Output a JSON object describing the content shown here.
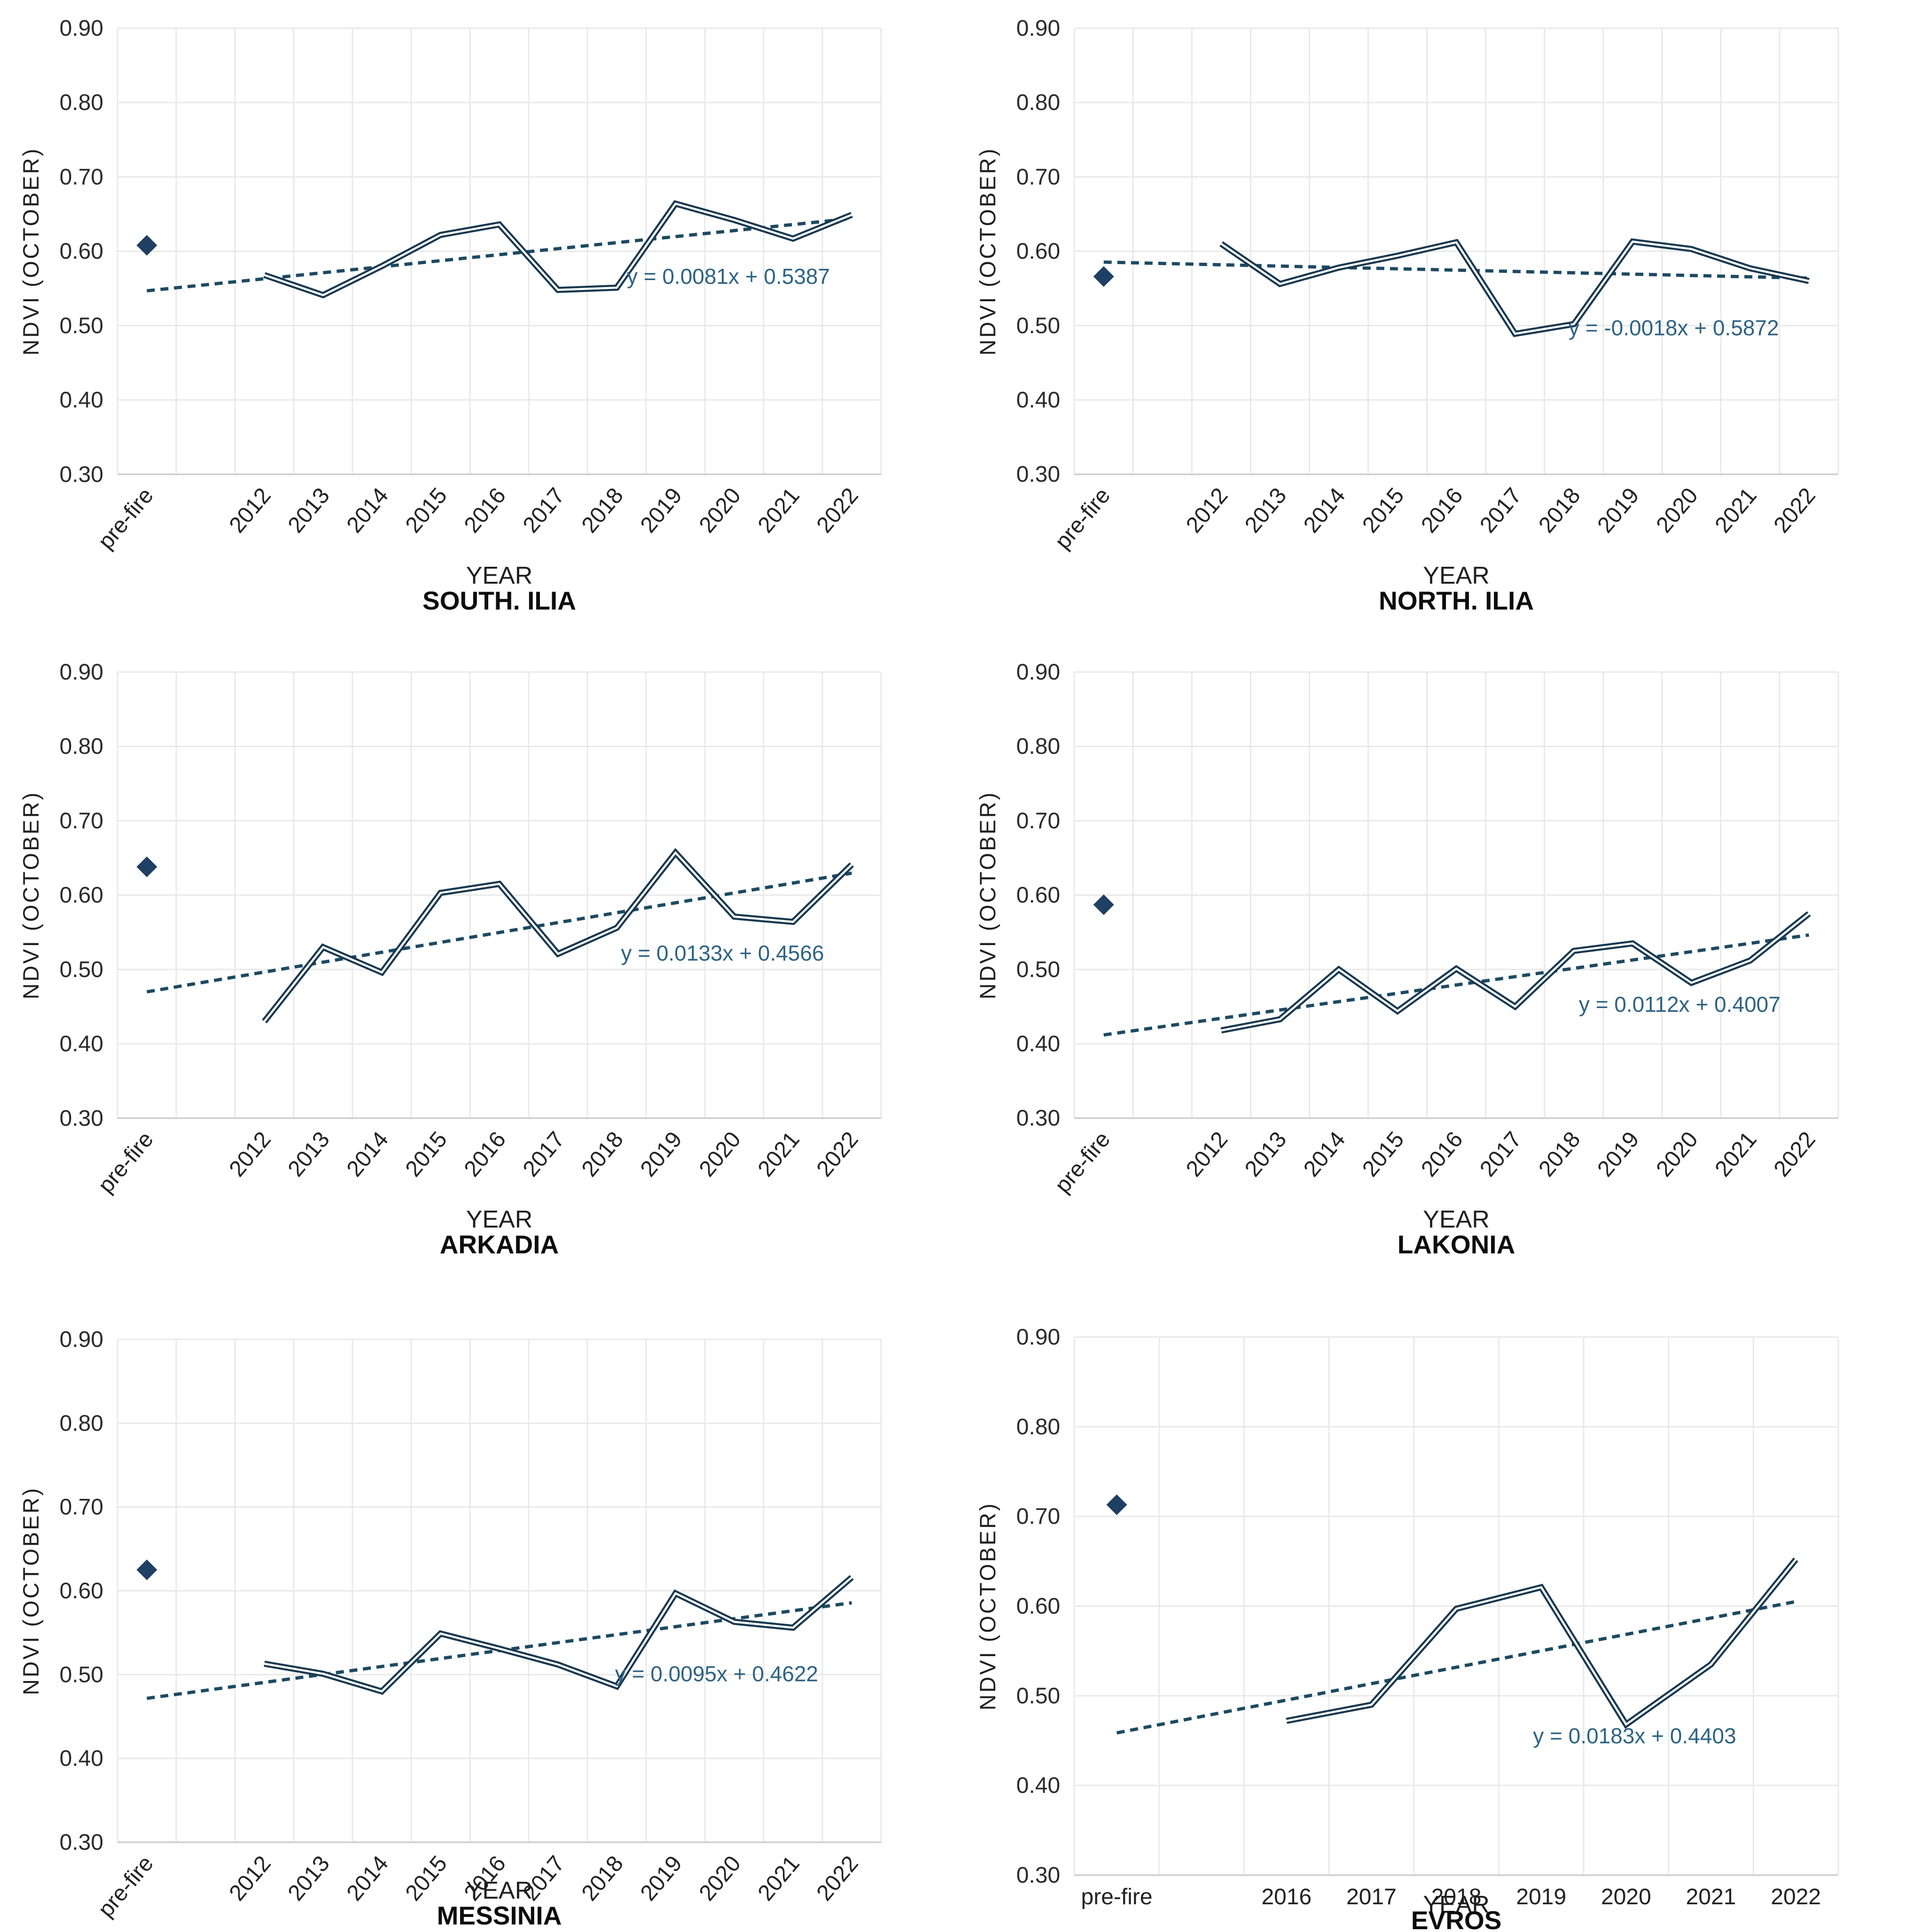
{
  "figure": {
    "background": "#ffffff",
    "y_axis_title": "NDVI (OCTOBER)",
    "x_axis_title": "YEAR"
  },
  "style": {
    "series_line_color": "#17384F",
    "series_inner_color": "#FFFFFF",
    "marker_color": "#1F3F63",
    "trendline_color": "#1C4A63",
    "equation_color": "#2D6383",
    "gridline_color": "#E9E9E9",
    "axisline_color": "#CFCFCF",
    "tick_text_color": "#2b2b2b"
  },
  "chart_data": [
    {
      "type": "line",
      "title": "SOUTH. ILIA",
      "xlabel": "YEAR",
      "ylabel": "NDVI (OCTOBER)",
      "ylim": [
        0.3,
        0.9
      ],
      "y_ticks": [
        "0.90",
        "0.80",
        "0.70",
        "0.60",
        "0.50",
        "0.40",
        "0.30"
      ],
      "categories": [
        "pre-fire",
        "",
        "2012",
        "2013",
        "2014",
        "2015",
        "2016",
        "2017",
        "2018",
        "2019",
        "2020",
        "2021",
        "2022"
      ],
      "x_labels_rotated": true,
      "pre_fire_marker": {
        "category": "pre-fire",
        "value": 0.608
      },
      "series": [
        {
          "name": "NDVI (OCTOBER)",
          "start_col": 2,
          "x": [
            "2012",
            "2013",
            "2014",
            "2015",
            "2016",
            "2017",
            "2018",
            "2019",
            "2020",
            "2021",
            "2022"
          ],
          "values": [
            0.568,
            0.541,
            0.58,
            0.622,
            0.636,
            0.548,
            0.551,
            0.664,
            0.642,
            0.617,
            0.649
          ]
        }
      ],
      "trendline": {
        "slope": 0.0081,
        "intercept": 0.5387
      },
      "equation_label": {
        "text": "y = 0.0081x + 0.5387",
        "col": 10.4,
        "value": 0.556
      },
      "layout": {
        "plot_top": 60,
        "plot_bottom": 1010,
        "year_y": 1243,
        "title_y": 1298
      }
    },
    {
      "type": "line",
      "title": "NORTH. ILIA",
      "xlabel": "YEAR",
      "ylabel": "NDVI (OCTOBER)",
      "ylim": [
        0.3,
        0.9
      ],
      "y_ticks": [
        "0.90",
        "0.80",
        "0.70",
        "0.60",
        "0.50",
        "0.40",
        "0.30"
      ],
      "categories": [
        "pre-fire",
        "",
        "2012",
        "2013",
        "2014",
        "2015",
        "2016",
        "2017",
        "2018",
        "2019",
        "2020",
        "2021",
        "2022"
      ],
      "x_labels_rotated": true,
      "pre_fire_marker": {
        "category": "pre-fire",
        "value": 0.566
      },
      "series": [
        {
          "name": "NDVI (OCTOBER)",
          "start_col": 2,
          "x": [
            "2012",
            "2013",
            "2014",
            "2015",
            "2016",
            "2017",
            "2018",
            "2019",
            "2020",
            "2021",
            "2022"
          ],
          "values": [
            0.61,
            0.556,
            0.578,
            0.594,
            0.612,
            0.489,
            0.502,
            0.613,
            0.603,
            0.577,
            0.56
          ]
        }
      ],
      "trendline": {
        "slope": -0.0018,
        "intercept": 0.5872
      },
      "equation_label": {
        "text": "y = -0.0018x + 0.5872",
        "col": 10.2,
        "value": 0.487
      },
      "layout": {
        "plot_top": 60,
        "plot_bottom": 1010,
        "year_y": 1243,
        "title_y": 1298
      }
    },
    {
      "type": "line",
      "title": "ARKADIA",
      "xlabel": "YEAR",
      "ylabel": "NDVI (OCTOBER)",
      "ylim": [
        0.3,
        0.9
      ],
      "y_ticks": [
        "0.90",
        "0.80",
        "0.70",
        "0.60",
        "0.50",
        "0.40",
        "0.30"
      ],
      "categories": [
        "pre-fire",
        "",
        "2012",
        "2013",
        "2014",
        "2015",
        "2016",
        "2017",
        "2018",
        "2019",
        "2020",
        "2021",
        "2022"
      ],
      "x_labels_rotated": true,
      "pre_fire_marker": {
        "category": "pre-fire",
        "value": 0.638
      },
      "series": [
        {
          "name": "NDVI (OCTOBER)",
          "start_col": 2,
          "x": [
            "2012",
            "2013",
            "2014",
            "2015",
            "2016",
            "2017",
            "2018",
            "2019",
            "2020",
            "2021",
            "2022"
          ],
          "values": [
            0.43,
            0.53,
            0.496,
            0.603,
            0.615,
            0.521,
            0.556,
            0.657,
            0.571,
            0.564,
            0.641
          ]
        }
      ],
      "trendline": {
        "slope": 0.0133,
        "intercept": 0.4566
      },
      "equation_label": {
        "text": "y = 0.0133x + 0.4566",
        "col": 10.3,
        "value": 0.512
      },
      "layout": {
        "plot_top": 60,
        "plot_bottom": 1010,
        "year_y": 1243,
        "title_y": 1298
      }
    },
    {
      "type": "line",
      "title": "LAKONIA",
      "xlabel": "YEAR",
      "ylabel": "NDVI (OCTOBER)",
      "ylim": [
        0.3,
        0.9
      ],
      "y_ticks": [
        "0.90",
        "0.80",
        "0.70",
        "0.60",
        "0.50",
        "0.40",
        "0.30"
      ],
      "categories": [
        "pre-fire",
        "",
        "2012",
        "2013",
        "2014",
        "2015",
        "2016",
        "2017",
        "2018",
        "2019",
        "2020",
        "2021",
        "2022"
      ],
      "x_labels_rotated": true,
      "pre_fire_marker": {
        "category": "pre-fire",
        "value": 0.587
      },
      "series": [
        {
          "name": "NDVI (OCTOBER)",
          "start_col": 2,
          "x": [
            "2012",
            "2013",
            "2014",
            "2015",
            "2016",
            "2017",
            "2018",
            "2019",
            "2020",
            "2021",
            "2022"
          ],
          "values": [
            0.418,
            0.433,
            0.5,
            0.444,
            0.501,
            0.45,
            0.525,
            0.535,
            0.482,
            0.512,
            0.575
          ]
        }
      ],
      "trendline": {
        "slope": 0.0112,
        "intercept": 0.4007
      },
      "equation_label": {
        "text": "y = 0.0112x + 0.4007",
        "col": 10.3,
        "value": 0.443
      },
      "layout": {
        "plot_top": 60,
        "plot_bottom": 1010,
        "year_y": 1243,
        "title_y": 1298
      }
    },
    {
      "type": "line",
      "title": "MESSINIA",
      "xlabel": "YEAR",
      "ylabel": "NDVI (OCTOBER)",
      "ylim": [
        0.3,
        0.9
      ],
      "y_ticks": [
        "0.90",
        "0.80",
        "0.70",
        "0.60",
        "0.50",
        "0.40",
        "0.30"
      ],
      "categories": [
        "pre-fire",
        "",
        "2012",
        "2013",
        "2014",
        "2015",
        "2016",
        "2017",
        "2018",
        "2019",
        "2020",
        "2021",
        "2022"
      ],
      "x_labels_rotated": true,
      "pre_fire_marker": {
        "category": "pre-fire",
        "value": 0.625
      },
      "series": [
        {
          "name": "NDVI (OCTOBER)",
          "start_col": 2,
          "x": [
            "2012",
            "2013",
            "2014",
            "2015",
            "2016",
            "2017",
            "2018",
            "2019",
            "2020",
            "2021",
            "2022"
          ],
          "values": [
            0.513,
            0.501,
            0.48,
            0.549,
            0.531,
            0.512,
            0.486,
            0.597,
            0.563,
            0.556,
            0.616
          ]
        }
      ],
      "trendline": {
        "slope": 0.0095,
        "intercept": 0.4622
      },
      "equation_label": {
        "text": "y = 0.0095x + 0.4622",
        "col": 10.2,
        "value": 0.492
      },
      "layout": {
        "plot_top": 110,
        "plot_bottom": 1180,
        "year_y": 1300,
        "title_y": 1355
      }
    },
    {
      "type": "line",
      "title": "EVROS",
      "xlabel": "YEAR",
      "ylabel": "NDVI (OCTOBER)",
      "ylim": [
        0.3,
        0.9
      ],
      "y_ticks": [
        "0.90",
        "0.80",
        "0.70",
        "0.60",
        "0.50",
        "0.40",
        "0.30"
      ],
      "categories": [
        "pre-fire",
        "",
        "2016",
        "2017",
        "2018",
        "2019",
        "2020",
        "2021",
        "2022"
      ],
      "x_labels_rotated": false,
      "pre_fire_marker": {
        "category": "pre-fire",
        "value": 0.713
      },
      "series": [
        {
          "name": "NDVI (OCTOBER)",
          "start_col": 2,
          "x": [
            "2016",
            "2017",
            "2018",
            "2019",
            "2020",
            "2021",
            "2022"
          ],
          "values": [
            0.472,
            0.49,
            0.597,
            0.621,
            0.468,
            0.535,
            0.652
          ]
        }
      ],
      "trendline": {
        "slope": 0.0183,
        "intercept": 0.4403
      },
      "equation_label": {
        "text": "y = 0.0183x + 0.4403",
        "col": 6.6,
        "value": 0.447
      },
      "layout": {
        "plot_top": 105,
        "plot_bottom": 1250,
        "year_y": 1330,
        "title_y": 1365
      }
    }
  ]
}
